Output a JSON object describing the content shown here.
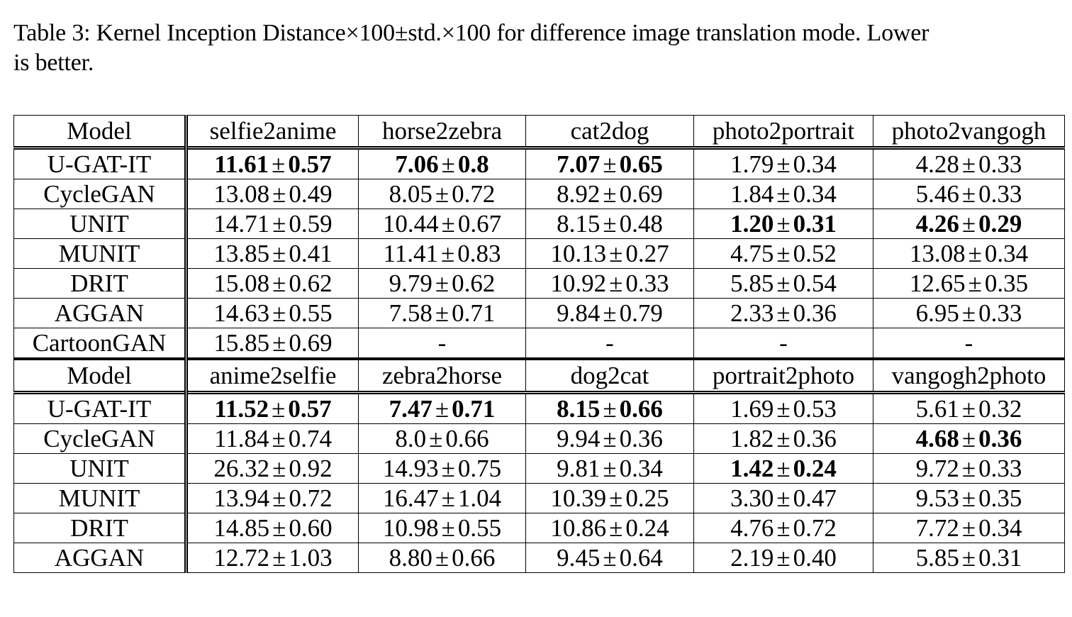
{
  "caption": {
    "line1": "Table 3: Kernel Inception Distance×100±std.×100 for difference image translation mode. Lower",
    "line2": "is better."
  },
  "sections": [
    {
      "header": [
        "Model",
        "selfie2anime",
        "horse2zebra",
        "cat2dog",
        "photo2portrait",
        "photo2vangogh"
      ],
      "rows": [
        {
          "model": "U-GAT-IT",
          "cells": [
            {
              "mean": "11.61",
              "std": "0.57",
              "bold": true
            },
            {
              "mean": "7.06",
              "std": "0.8",
              "bold": true
            },
            {
              "mean": "7.07",
              "std": "0.65",
              "bold": true
            },
            {
              "mean": "1.79",
              "std": "0.34",
              "bold": false
            },
            {
              "mean": "4.28",
              "std": "0.33",
              "bold": false
            }
          ]
        },
        {
          "model": "CycleGAN",
          "cells": [
            {
              "mean": "13.08",
              "std": "0.49",
              "bold": false
            },
            {
              "mean": "8.05",
              "std": "0.72",
              "bold": false
            },
            {
              "mean": "8.92",
              "std": "0.69",
              "bold": false
            },
            {
              "mean": "1.84",
              "std": "0.34",
              "bold": false
            },
            {
              "mean": "5.46",
              "std": "0.33",
              "bold": false
            }
          ]
        },
        {
          "model": "UNIT",
          "cells": [
            {
              "mean": "14.71",
              "std": "0.59",
              "bold": false
            },
            {
              "mean": "10.44",
              "std": "0.67",
              "bold": false
            },
            {
              "mean": "8.15",
              "std": "0.48",
              "bold": false
            },
            {
              "mean": "1.20",
              "std": "0.31",
              "bold": true
            },
            {
              "mean": "4.26",
              "std": "0.29",
              "bold": true
            }
          ]
        },
        {
          "model": "MUNIT",
          "cells": [
            {
              "mean": "13.85",
              "std": "0.41",
              "bold": false
            },
            {
              "mean": "11.41",
              "std": "0.83",
              "bold": false
            },
            {
              "mean": "10.13",
              "std": "0.27",
              "bold": false
            },
            {
              "mean": "4.75",
              "std": "0.52",
              "bold": false
            },
            {
              "mean": "13.08",
              "std": "0.34",
              "bold": false
            }
          ]
        },
        {
          "model": "DRIT",
          "cells": [
            {
              "mean": "15.08",
              "std": "0.62",
              "bold": false
            },
            {
              "mean": "9.79",
              "std": "0.62",
              "bold": false
            },
            {
              "mean": "10.92",
              "std": "0.33",
              "bold": false
            },
            {
              "mean": "5.85",
              "std": "0.54",
              "bold": false
            },
            {
              "mean": "12.65",
              "std": "0.35",
              "bold": false
            }
          ]
        },
        {
          "model": "AGGAN",
          "cells": [
            {
              "mean": "14.63",
              "std": "0.55",
              "bold": false
            },
            {
              "mean": "7.58",
              "std": "0.71",
              "bold": false
            },
            {
              "mean": "9.84",
              "std": "0.79",
              "bold": false
            },
            {
              "mean": "2.33",
              "std": "0.36",
              "bold": false
            },
            {
              "mean": "6.95",
              "std": "0.33",
              "bold": false
            }
          ]
        },
        {
          "model": "CartoonGAN",
          "cells": [
            {
              "mean": "15.85",
              "std": "0.69",
              "bold": false
            },
            {
              "dash": "-"
            },
            {
              "dash": "-"
            },
            {
              "dash": "-"
            },
            {
              "dash": "-"
            }
          ]
        }
      ]
    },
    {
      "header": [
        "Model",
        "anime2selfie",
        "zebra2horse",
        "dog2cat",
        "portrait2photo",
        "vangogh2photo"
      ],
      "rows": [
        {
          "model": "U-GAT-IT",
          "cells": [
            {
              "mean": "11.52",
              "std": "0.57",
              "bold": true
            },
            {
              "mean": "7.47",
              "std": "0.71",
              "bold": true
            },
            {
              "mean": "8.15",
              "std": "0.66",
              "bold": true
            },
            {
              "mean": "1.69",
              "std": "0.53",
              "bold": false
            },
            {
              "mean": "5.61",
              "std": "0.32",
              "bold": false
            }
          ]
        },
        {
          "model": "CycleGAN",
          "cells": [
            {
              "mean": "11.84",
              "std": "0.74",
              "bold": false
            },
            {
              "mean": "8.0",
              "std": "0.66",
              "bold": false
            },
            {
              "mean": "9.94",
              "std": "0.36",
              "bold": false
            },
            {
              "mean": "1.82",
              "std": "0.36",
              "bold": false
            },
            {
              "mean": "4.68",
              "std": "0.36",
              "bold": true
            }
          ]
        },
        {
          "model": "UNIT",
          "cells": [
            {
              "mean": "26.32",
              "std": "0.92",
              "bold": false
            },
            {
              "mean": "14.93",
              "std": "0.75",
              "bold": false
            },
            {
              "mean": "9.81",
              "std": "0.34",
              "bold": false
            },
            {
              "mean": "1.42",
              "std": "0.24",
              "bold": true
            },
            {
              "mean": "9.72",
              "std": "0.33",
              "bold": false
            }
          ]
        },
        {
          "model": "MUNIT",
          "cells": [
            {
              "mean": "13.94",
              "std": "0.72",
              "bold": false
            },
            {
              "mean": "16.47",
              "std": "1.04",
              "bold": false
            },
            {
              "mean": "10.39",
              "std": "0.25",
              "bold": false
            },
            {
              "mean": "3.30",
              "std": "0.47",
              "bold": false
            },
            {
              "mean": "9.53",
              "std": "0.35",
              "bold": false
            }
          ]
        },
        {
          "model": "DRIT",
          "cells": [
            {
              "mean": "14.85",
              "std": "0.60",
              "bold": false
            },
            {
              "mean": "10.98",
              "std": "0.55",
              "bold": false
            },
            {
              "mean": "10.86",
              "std": "0.24",
              "bold": false
            },
            {
              "mean": "4.76",
              "std": "0.72",
              "bold": false
            },
            {
              "mean": "7.72",
              "std": "0.34",
              "bold": false
            }
          ]
        },
        {
          "model": "AGGAN",
          "cells": [
            {
              "mean": "12.72",
              "std": "1.03",
              "bold": false
            },
            {
              "mean": "8.80",
              "std": "0.66",
              "bold": false
            },
            {
              "mean": "9.45",
              "std": "0.64",
              "bold": false
            },
            {
              "mean": "2.19",
              "std": "0.40",
              "bold": false
            },
            {
              "mean": "5.85",
              "std": "0.31",
              "bold": false
            }
          ]
        }
      ]
    }
  ],
  "pm_symbol": "±"
}
